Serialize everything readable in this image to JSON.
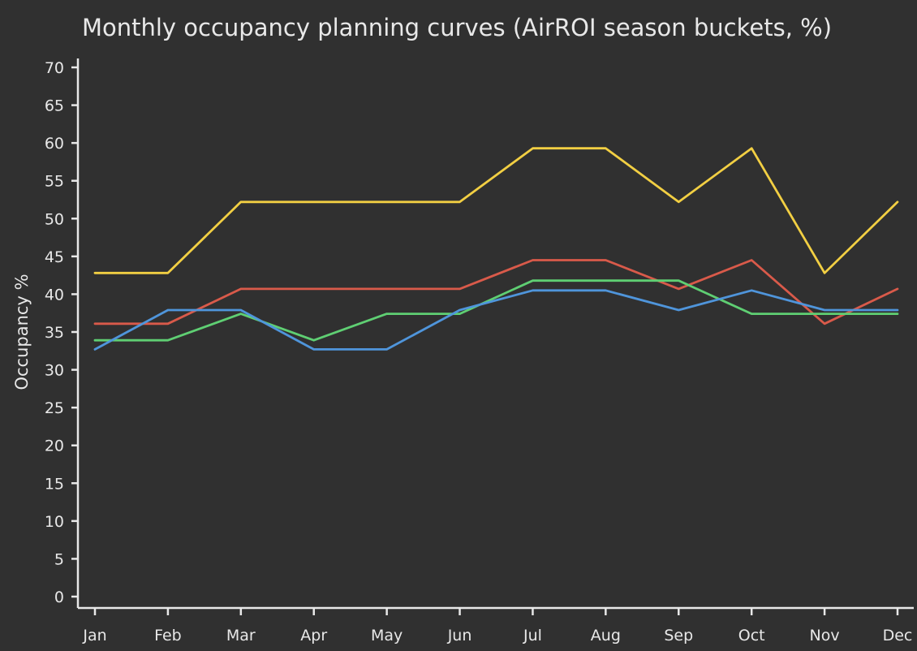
{
  "chart_data": {
    "type": "line",
    "title": "Monthly occupancy planning curves (AirROI season buckets, %)",
    "xlabel": "",
    "ylabel": "Occupancy %",
    "ylim": [
      0,
      70
    ],
    "yticks": [
      0,
      5,
      10,
      15,
      20,
      25,
      30,
      35,
      40,
      45,
      50,
      55,
      60,
      65,
      70
    ],
    "grid": false,
    "legend": "none",
    "categories": [
      "Jan",
      "Feb",
      "Mar",
      "Apr",
      "May",
      "Jun",
      "Jul",
      "Aug",
      "Sep",
      "Oct",
      "Nov",
      "Dec"
    ],
    "series": [
      {
        "name": "yellow-series",
        "color": "#f2cf43",
        "values": [
          42.8,
          42.8,
          52.2,
          52.2,
          52.2,
          52.2,
          59.3,
          59.3,
          52.2,
          59.3,
          42.8,
          52.2
        ]
      },
      {
        "name": "red-series",
        "color": "#d95a4a",
        "values": [
          36.1,
          36.1,
          40.7,
          40.7,
          40.7,
          40.7,
          44.5,
          44.5,
          40.7,
          44.5,
          36.1,
          40.7
        ]
      },
      {
        "name": "green-series",
        "color": "#5fcf73",
        "values": [
          33.9,
          33.9,
          37.4,
          33.9,
          37.4,
          37.4,
          41.8,
          41.8,
          41.8,
          37.4,
          37.4,
          37.4
        ]
      },
      {
        "name": "blue-series",
        "color": "#4f95db",
        "values": [
          32.7,
          37.9,
          37.9,
          32.7,
          32.7,
          37.9,
          40.5,
          40.5,
          37.9,
          40.5,
          37.9,
          37.9
        ]
      }
    ]
  }
}
